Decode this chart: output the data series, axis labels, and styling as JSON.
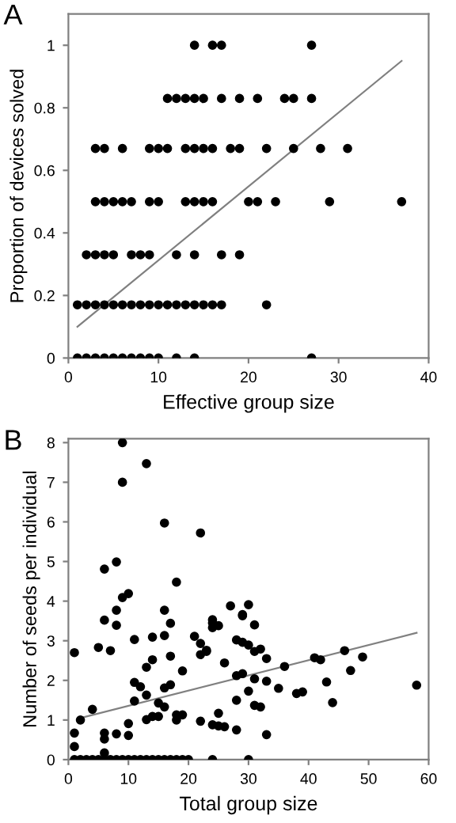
{
  "chart_data": [
    {
      "type": "scatter",
      "title": "A",
      "xlabel": "Effective group size",
      "ylabel": "Proportion of devices solved",
      "xlim": [
        0,
        40
      ],
      "xticks": [
        0,
        10,
        20,
        30,
        40
      ],
      "ylim": [
        0,
        1.1
      ],
      "yticks": [
        0,
        0.2,
        0.4,
        0.6,
        0.8,
        1
      ],
      "grid": false,
      "legend": false,
      "series": [
        {
          "marker": "circle",
          "color": "#000000",
          "x": [
            14,
            16,
            17,
            27,
            11,
            12,
            13,
            14,
            15,
            17,
            19,
            21,
            24,
            25,
            27,
            3,
            4,
            6,
            9,
            10,
            11,
            13,
            14,
            15,
            16,
            18,
            19,
            22,
            25,
            28,
            31,
            3,
            4,
            5,
            6,
            7,
            9,
            10,
            13,
            14,
            15,
            16,
            20,
            21,
            23,
            29,
            37,
            2,
            3,
            4,
            5,
            7,
            8,
            9,
            12,
            14,
            17,
            19,
            1,
            2,
            3,
            4,
            5,
            6,
            7,
            8,
            9,
            10,
            11,
            12,
            13,
            14,
            15,
            16,
            17,
            22,
            1,
            2,
            3,
            4,
            5,
            6,
            7,
            8,
            9,
            10,
            12,
            14,
            27
          ],
          "values": [
            1,
            1,
            1,
            1,
            0.83,
            0.83,
            0.83,
            0.83,
            0.83,
            0.83,
            0.83,
            0.83,
            0.83,
            0.83,
            0.83,
            0.67,
            0.67,
            0.67,
            0.67,
            0.67,
            0.67,
            0.67,
            0.67,
            0.67,
            0.67,
            0.67,
            0.67,
            0.67,
            0.67,
            0.67,
            0.67,
            0.5,
            0.5,
            0.5,
            0.5,
            0.5,
            0.5,
            0.5,
            0.5,
            0.5,
            0.5,
            0.5,
            0.5,
            0.5,
            0.5,
            0.5,
            0.5,
            0.33,
            0.33,
            0.33,
            0.33,
            0.33,
            0.33,
            0.33,
            0.33,
            0.33,
            0.33,
            0.33,
            0.17,
            0.17,
            0.17,
            0.17,
            0.17,
            0.17,
            0.17,
            0.17,
            0.17,
            0.17,
            0.17,
            0.17,
            0.17,
            0.17,
            0.17,
            0.17,
            0.17,
            0.17,
            0,
            0,
            0,
            0,
            0,
            0,
            0,
            0,
            0,
            0,
            0,
            0,
            0
          ]
        },
        {
          "type": "line",
          "color": "#808080",
          "line_style": "solid",
          "x": [
            1,
            37
          ],
          "values": [
            0.1,
            0.95
          ]
        }
      ]
    },
    {
      "type": "scatter",
      "title": "B",
      "xlabel": "Total group size",
      "ylabel": "Number of seeds per individual",
      "xlim": [
        0,
        60
      ],
      "xticks": [
        0,
        10,
        20,
        30,
        40,
        50,
        60
      ],
      "ylim": [
        0,
        8.1
      ],
      "yticks": [
        0,
        1,
        2,
        3,
        4,
        5,
        6,
        7,
        8
      ],
      "grid": false,
      "legend": false,
      "series": [
        {
          "marker": "circle",
          "color": "#000000",
          "x": [
            9,
            13,
            9,
            16,
            22,
            8,
            6,
            18,
            9,
            10,
            27,
            30,
            6,
            8,
            8,
            16,
            17,
            16,
            14,
            11,
            5,
            7,
            1,
            14,
            13,
            17,
            19,
            11,
            12,
            13,
            11,
            16,
            17,
            15,
            16,
            4,
            2,
            10,
            10,
            8,
            6,
            6,
            1,
            1,
            6,
            13,
            14,
            15,
            18,
            18,
            19,
            21,
            22,
            23,
            23,
            22,
            24,
            24,
            24,
            25,
            26,
            28,
            29,
            29,
            29,
            30,
            31,
            31,
            32,
            33,
            28,
            29,
            31,
            30,
            33,
            28,
            31,
            32,
            22,
            25,
            24,
            25,
            26,
            28,
            33,
            36,
            35,
            38,
            39,
            41,
            42,
            43,
            44,
            46,
            47,
            49,
            58,
            1,
            2,
            3,
            4,
            5,
            6,
            7,
            8,
            9,
            10,
            11,
            12,
            13,
            14,
            15,
            16,
            17,
            18,
            19,
            20,
            24,
            30
          ],
          "values": [
            8,
            7.47,
            7,
            5.97,
            5.72,
            4.99,
            4.81,
            4.48,
            4.09,
            4.19,
            3.88,
            3.91,
            3.52,
            3.77,
            3.39,
            3.77,
            3.44,
            3.13,
            3.09,
            3.03,
            2.83,
            2.75,
            2.7,
            2.52,
            2.33,
            2.61,
            2.24,
            1.95,
            1.84,
            1.63,
            1.48,
            1.81,
            1.89,
            1.43,
            1.33,
            1.27,
            1,
            0.91,
            0.61,
            0.65,
            0.67,
            0.52,
            0.67,
            0.33,
            0.17,
            1.01,
            1.09,
            1.09,
            1,
            1.13,
            1.13,
            3.11,
            2.93,
            2.73,
            2.76,
            2.65,
            3.53,
            3.45,
            3.33,
            3.38,
            2.44,
            3.02,
            2.96,
            3.66,
            3.63,
            2.89,
            2.73,
            3.4,
            2.79,
            2.55,
            2.12,
            2.17,
            2.04,
            1.73,
            1.98,
            1.5,
            1.37,
            1.33,
            0.97,
            1.17,
            0.88,
            0.85,
            0.83,
            0.75,
            0.63,
            2.35,
            1.8,
            1.67,
            1.71,
            2.57,
            2.52,
            1.96,
            1.44,
            2.75,
            2.25,
            2.59,
            1.88,
            0,
            0,
            0,
            0,
            0,
            0,
            0,
            0,
            0,
            0,
            0,
            0,
            0,
            0,
            0,
            0,
            0,
            0,
            0,
            0,
            0,
            0
          ]
        },
        {
          "type": "line",
          "color": "#808080",
          "line_style": "solid",
          "x": [
            2,
            58
          ],
          "values": [
            1.05,
            3.2
          ]
        }
      ]
    }
  ]
}
